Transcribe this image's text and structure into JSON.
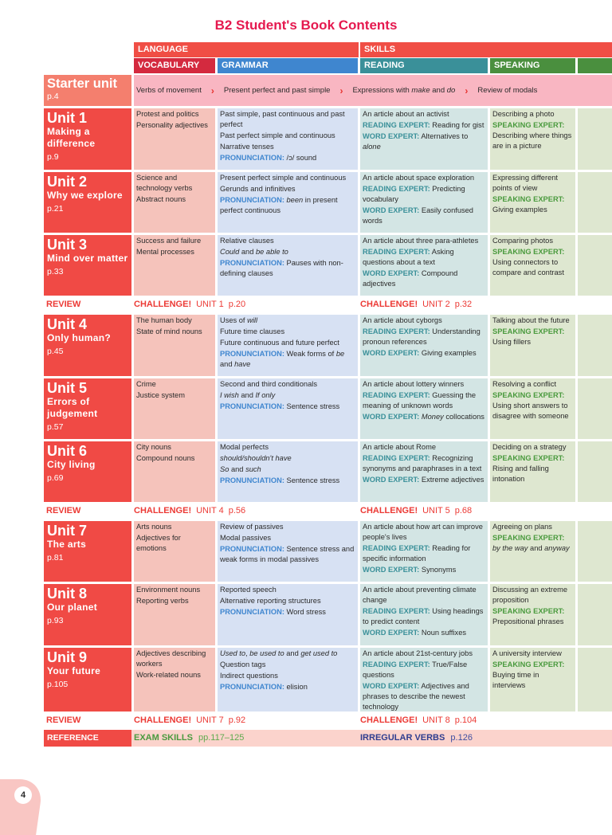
{
  "title": "B2 Student's Book Contents",
  "headers": {
    "language": "LANGUAGE",
    "skills": "SKILLS",
    "vocabulary": "VOCABULARY",
    "grammar": "GRAMMAR",
    "reading": "READING",
    "speaking": "SPEAKING"
  },
  "colors": {
    "language": "#f04e45",
    "vocabulary": "#d42a3f",
    "grammar": "#3f86cf",
    "reading": "#3a9099",
    "speaking": "#4a8f3e",
    "title": "#e5194f"
  },
  "starter": {
    "name": "Starter unit",
    "page": "p.4",
    "items": [
      "Verbs of movement",
      "Present perfect and past simple",
      [
        {
          "t": "Expressions with "
        },
        {
          "t": "make",
          "s": "i"
        },
        {
          "t": " and "
        },
        {
          "t": "do",
          "s": "i"
        }
      ],
      "Review of modals"
    ],
    "separator": "›"
  },
  "units": [
    {
      "name": "Unit 1",
      "sub": "Making a difference",
      "page": "p.9",
      "vocab": [
        [
          "Protest and politics"
        ],
        [
          "Personality adjectives"
        ]
      ],
      "grammar": [
        [
          "Past simple, past continuous and past perfect"
        ],
        [
          "Past perfect simple and continuous"
        ],
        [
          "Narrative tenses"
        ],
        [
          {
            "t": "PRONUNCIATION:",
            "s": "p"
          },
          {
            "t": " /ɔ/ sound"
          }
        ]
      ],
      "reading": [
        [
          "An article about an activist"
        ],
        [
          {
            "t": "READING EXPERT:",
            "s": "r"
          },
          {
            "t": " Reading for gist"
          }
        ],
        [
          {
            "t": "WORD EXPERT:",
            "s": "r"
          },
          {
            "t": " Alternatives to "
          },
          {
            "t": "alone",
            "s": "i"
          }
        ]
      ],
      "speaking": [
        [
          "Describing a photo"
        ],
        [
          {
            "t": "SPEAKING EXPERT:",
            "s": "s"
          },
          {
            "t": " Describing where things are in a picture"
          }
        ]
      ]
    },
    {
      "name": "Unit 2",
      "sub": "Why we explore",
      "page": "p.21",
      "vocab": [
        [
          "Science and technology verbs"
        ],
        [
          "Abstract nouns"
        ]
      ],
      "grammar": [
        [
          "Present perfect simple and continuous"
        ],
        [
          "Gerunds and infinitives"
        ],
        [
          {
            "t": "PRONUNCIATION:",
            "s": "p"
          },
          {
            "t": " "
          },
          {
            "t": "been",
            "s": "i"
          },
          {
            "t": " in present perfect continuous"
          }
        ]
      ],
      "reading": [
        [
          "An article about space exploration"
        ],
        [
          {
            "t": "READING EXPERT:",
            "s": "r"
          },
          {
            "t": " Predicting vocabulary"
          }
        ],
        [
          {
            "t": "WORD EXPERT:",
            "s": "r"
          },
          {
            "t": " Easily confused words"
          }
        ]
      ],
      "speaking": [
        [
          "Expressing different points of view"
        ],
        [
          {
            "t": "SPEAKING EXPERT:",
            "s": "s"
          },
          {
            "t": " Giving examples"
          }
        ]
      ]
    },
    {
      "name": "Unit 3",
      "sub": "Mind over matter",
      "page": "p.33",
      "vocab": [
        [
          "Success and failure"
        ],
        [
          "Mental processes"
        ]
      ],
      "grammar": [
        [
          "Relative clauses"
        ],
        [
          {
            "t": "Could",
            "s": "i"
          },
          {
            "t": " and "
          },
          {
            "t": "be able to",
            "s": "i"
          }
        ],
        [
          {
            "t": "PRONUNCIATION:",
            "s": "p"
          },
          {
            "t": " Pauses with non-defining clauses"
          }
        ]
      ],
      "reading": [
        [
          "An article about three para-athletes"
        ],
        [
          {
            "t": "READING EXPERT:",
            "s": "r"
          },
          {
            "t": " Asking questions about a text"
          }
        ],
        [
          {
            "t": "WORD EXPERT:",
            "s": "r"
          },
          {
            "t": " Compound adjectives"
          }
        ]
      ],
      "speaking": [
        [
          "Comparing photos"
        ],
        [
          {
            "t": "SPEAKING EXPERT:",
            "s": "s"
          },
          {
            "t": " Using connectors to compare and contrast"
          }
        ]
      ]
    },
    {
      "name": "Unit 4",
      "sub": "Only human?",
      "page": "p.45",
      "vocab": [
        [
          "The human body"
        ],
        [
          "State of mind nouns"
        ]
      ],
      "grammar": [
        [
          {
            "t": "Uses of "
          },
          {
            "t": "will",
            "s": "i"
          }
        ],
        [
          "Future time clauses"
        ],
        [
          "Future continuous and future perfect"
        ],
        [
          {
            "t": "PRONUNCIATION:",
            "s": "p"
          },
          {
            "t": " Weak forms of "
          },
          {
            "t": "be",
            "s": "i"
          },
          {
            "t": " and "
          },
          {
            "t": "have",
            "s": "i"
          }
        ]
      ],
      "reading": [
        [
          "An article about cyborgs"
        ],
        [
          {
            "t": "READING EXPERT:",
            "s": "r"
          },
          {
            "t": " Understanding pronoun references"
          }
        ],
        [
          {
            "t": "WORD EXPERT:",
            "s": "r"
          },
          {
            "t": " Giving examples"
          }
        ]
      ],
      "speaking": [
        [
          "Talking about the future"
        ],
        [
          {
            "t": "SPEAKING EXPERT:",
            "s": "s"
          },
          {
            "t": " Using fillers"
          }
        ]
      ]
    },
    {
      "name": "Unit 5",
      "sub": "Errors of judgement",
      "page": "p.57",
      "vocab": [
        [
          "Crime"
        ],
        [
          "Justice system"
        ]
      ],
      "grammar": [
        [
          "Second and third conditionals"
        ],
        [
          {
            "t": "I wish",
            "s": "i"
          },
          {
            "t": " and "
          },
          {
            "t": "If only",
            "s": "i"
          }
        ],
        [
          {
            "t": "PRONUNCIATION:",
            "s": "p"
          },
          {
            "t": " Sentence stress"
          }
        ]
      ],
      "reading": [
        [
          "An article about lottery winners"
        ],
        [
          {
            "t": "READING EXPERT:",
            "s": "r"
          },
          {
            "t": " Guessing the meaning of unknown words"
          }
        ],
        [
          {
            "t": "WORD EXPERT:",
            "s": "r"
          },
          {
            "t": " "
          },
          {
            "t": "Money",
            "s": "i"
          },
          {
            "t": " collocations"
          }
        ]
      ],
      "speaking": [
        [
          "Resolving a conflict"
        ],
        [
          {
            "t": "SPEAKING EXPERT:",
            "s": "s"
          },
          {
            "t": " Using short answers to disagree with someone"
          }
        ]
      ]
    },
    {
      "name": "Unit 6",
      "sub": "City living",
      "page": "p.69",
      "vocab": [
        [
          "City nouns"
        ],
        [
          "Compound nouns"
        ]
      ],
      "grammar": [
        [
          "Modal perfects"
        ],
        [
          {
            "t": "should/shouldn't have",
            "s": "i"
          }
        ],
        [
          {
            "t": "So",
            "s": "i"
          },
          {
            "t": " and "
          },
          {
            "t": "such",
            "s": "i"
          }
        ],
        [
          {
            "t": "PRONUNCIATION:",
            "s": "p"
          },
          {
            "t": " Sentence stress"
          }
        ]
      ],
      "reading": [
        [
          "An article about Rome"
        ],
        [
          {
            "t": "READING EXPERT:",
            "s": "r"
          },
          {
            "t": " Recognizing synonyms and paraphrases in a text"
          }
        ],
        [
          {
            "t": "WORD EXPERT:",
            "s": "r"
          },
          {
            "t": " Extreme adjectives"
          }
        ]
      ],
      "speaking": [
        [
          "Deciding on a strategy"
        ],
        [
          {
            "t": "SPEAKING EXPERT:",
            "s": "s"
          },
          {
            "t": " Rising and falling intonation"
          }
        ]
      ]
    },
    {
      "name": "Unit 7",
      "sub": "The arts",
      "page": "p.81",
      "vocab": [
        [
          "Arts nouns"
        ],
        [
          "Adjectives for emotions"
        ]
      ],
      "grammar": [
        [
          "Review of passives"
        ],
        [
          "Modal passives"
        ],
        [
          {
            "t": "PRONUNCIATION:",
            "s": "p"
          },
          {
            "t": " Sentence stress and weak forms in modal passives"
          }
        ]
      ],
      "reading": [
        [
          "An article about how art can improve people's lives"
        ],
        [
          {
            "t": "READING EXPERT:",
            "s": "r"
          },
          {
            "t": " Reading for specific information"
          }
        ],
        [
          {
            "t": "WORD EXPERT:",
            "s": "r"
          },
          {
            "t": " Synonyms"
          }
        ]
      ],
      "speaking": [
        [
          "Agreeing on plans"
        ],
        [
          {
            "t": "SPEAKING EXPERT:",
            "s": "s"
          },
          {
            "t": " "
          },
          {
            "t": "by the way",
            "s": "i"
          },
          {
            "t": " and "
          },
          {
            "t": "anyway",
            "s": "i"
          }
        ]
      ]
    },
    {
      "name": "Unit 8",
      "sub": "Our planet",
      "page": "p.93",
      "vocab": [
        [
          "Environment nouns"
        ],
        [
          "Reporting verbs"
        ]
      ],
      "grammar": [
        [
          "Reported speech"
        ],
        [
          "Alternative reporting structures"
        ],
        [
          {
            "t": "PRONUNCIATION:",
            "s": "p"
          },
          {
            "t": " Word stress"
          }
        ]
      ],
      "reading": [
        [
          "An article about preventing climate change"
        ],
        [
          {
            "t": "READING EXPERT:",
            "s": "r"
          },
          {
            "t": " Using headings to predict content"
          }
        ],
        [
          {
            "t": "WORD EXPERT:",
            "s": "r"
          },
          {
            "t": " Noun suffixes"
          }
        ]
      ],
      "speaking": [
        [
          "Discussing an extreme proposition"
        ],
        [
          {
            "t": "SPEAKING EXPERT:",
            "s": "s"
          },
          {
            "t": " Prepositional phrases"
          }
        ]
      ]
    },
    {
      "name": "Unit 9",
      "sub": "Your future",
      "page": "p.105",
      "vocab": [
        [
          "Adjectives describing workers"
        ],
        [
          "Work-related nouns"
        ]
      ],
      "grammar": [
        [
          {
            "t": "Used to",
            "s": "i"
          },
          {
            "t": ", "
          },
          {
            "t": "be used to",
            "s": "i"
          },
          {
            "t": " and "
          },
          {
            "t": "get used to",
            "s": "i"
          }
        ],
        [
          "Question tags"
        ],
        [
          "Indirect questions"
        ],
        [
          {
            "t": "PRONUNCIATION:",
            "s": "p"
          },
          {
            "t": " elision"
          }
        ]
      ],
      "reading": [
        [
          "An article about 21st-century jobs"
        ],
        [
          {
            "t": "READING EXPERT:",
            "s": "r"
          },
          {
            "t": " True/False questions"
          }
        ],
        [
          {
            "t": "WORD EXPERT:",
            "s": "r"
          },
          {
            "t": " Adjectives and phrases to describe the newest technology"
          }
        ]
      ],
      "speaking": [
        [
          "A university interview"
        ],
        [
          {
            "t": "SPEAKING EXPERT:",
            "s": "s"
          },
          {
            "t": " Buying time in interviews"
          }
        ]
      ]
    }
  ],
  "reviews": [
    {
      "label": "REVIEW",
      "items": [
        {
          "ch": "CHALLENGE!",
          "unit": "UNIT 1",
          "page": "p.20"
        },
        {
          "ch": "CHALLENGE!",
          "unit": "UNIT 2",
          "page": "p.32"
        }
      ]
    },
    {
      "label": "REVIEW",
      "items": [
        {
          "ch": "CHALLENGE!",
          "unit": "UNIT 4",
          "page": "p.56"
        },
        {
          "ch": "CHALLENGE!",
          "unit": "UNIT 5",
          "page": "p.68"
        }
      ]
    },
    {
      "label": "REVIEW",
      "items": [
        {
          "ch": "CHALLENGE!",
          "unit": "UNIT 7",
          "page": "p.92"
        },
        {
          "ch": "CHALLENGE!",
          "unit": "UNIT 8",
          "page": "p.104"
        }
      ]
    }
  ],
  "reference": {
    "label": "REFERENCE",
    "exam": "EXAM SKILLS",
    "exam_pages": "pp.117–125",
    "irregular": "IRREGULAR VERBS",
    "irregular_page": "p.126"
  },
  "page_number": "4"
}
